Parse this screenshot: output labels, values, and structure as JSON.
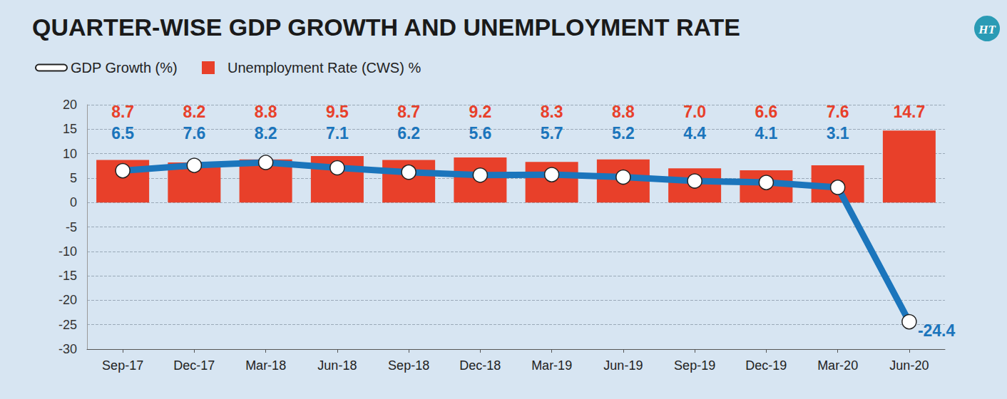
{
  "chart_data": {
    "type": "bar",
    "title": "QUARTER-WISE GDP GROWTH AND UNEMPLOYMENT RATE",
    "logo": "HT",
    "categories": [
      "Sep-17",
      "Dec-17",
      "Mar-18",
      "Jun-18",
      "Sep-18",
      "Dec-18",
      "Mar-19",
      "Jun-19",
      "Sep-19",
      "Dec-19",
      "Mar-20",
      "Jun-20"
    ],
    "series": [
      {
        "name": "GDP Growth (%)",
        "type": "line",
        "color": "#1b75bc",
        "marker": "circle",
        "values": [
          6.5,
          7.6,
          8.2,
          7.1,
          6.2,
          5.6,
          5.7,
          5.2,
          4.4,
          4.1,
          3.1,
          -24.4
        ]
      },
      {
        "name": "Unemployment Rate (CWS) %",
        "type": "bar",
        "color": "#e8402a",
        "values": [
          8.7,
          8.2,
          8.8,
          9.5,
          8.7,
          9.2,
          8.3,
          8.8,
          7.0,
          6.6,
          7.6,
          14.7
        ],
        "value_labels": [
          "8.7",
          "8.2",
          "8.8",
          "9.5",
          "8.7",
          "9.2",
          "8.3",
          "8.8",
          "7.0",
          "6.6",
          "7.6",
          "14.7"
        ]
      }
    ],
    "ylim": [
      -30,
      20
    ],
    "yticks": [
      -30,
      -25,
      -20,
      -15,
      -10,
      -5,
      0,
      5,
      10,
      15,
      20
    ],
    "grid": true,
    "legend": "top-left",
    "data_labels": true
  }
}
